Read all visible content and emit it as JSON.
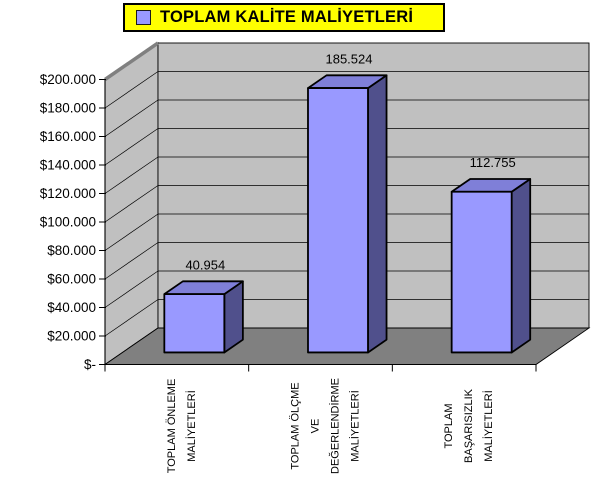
{
  "chart_data": {
    "type": "bar",
    "style": "3d-column",
    "title": "TOPLAM KALİTE MALİYETLERİ",
    "legend_position": "top",
    "legend_labels": [
      "TOPLAM KALİTE MALİYETLERİ"
    ],
    "categories": [
      "TOPLAM ÖNLEME MALİYETLERİ",
      "TOPLAM ÖLÇME VE DEĞERLENDİRME MALİYETLERİ",
      "TOPLAM BAŞARISIZLIK MALİYETLERİ"
    ],
    "category_label_lines": [
      [
        "TOPLAM ÖNLEME",
        "MALİYETLERİ"
      ],
      [
        "TOPLAM ÖLÇME",
        "VE",
        "DEĞERLENDİRME",
        "MALİYETLERİ"
      ],
      [
        "TOPLAM",
        "BAŞARISIZLIK",
        "MALİYETLERİ"
      ]
    ],
    "values": [
      40954,
      185524,
      112755
    ],
    "value_labels": [
      "40.954",
      "185.524",
      "112.755"
    ],
    "ylim": [
      0,
      200000
    ],
    "ytick_step": 20000,
    "ytick_labels": [
      "$200.000",
      "$180.000",
      "$160.000",
      "$140.000",
      "$120.000",
      "$100.000",
      "$80.000",
      "$60.000",
      "$40.000",
      "$20.000",
      "$-"
    ],
    "grid": true,
    "colors": {
      "bar_front": "#9999FF",
      "bar_top": "#7F7FD8",
      "bar_side": "#50508C",
      "wall": "#C0C0C0",
      "wall_edge": "#808080",
      "floor": "#808080",
      "gridline": "#000000",
      "legend_bg": "#FFFF00",
      "text": "#000000",
      "background": "#FFFFFF"
    }
  }
}
